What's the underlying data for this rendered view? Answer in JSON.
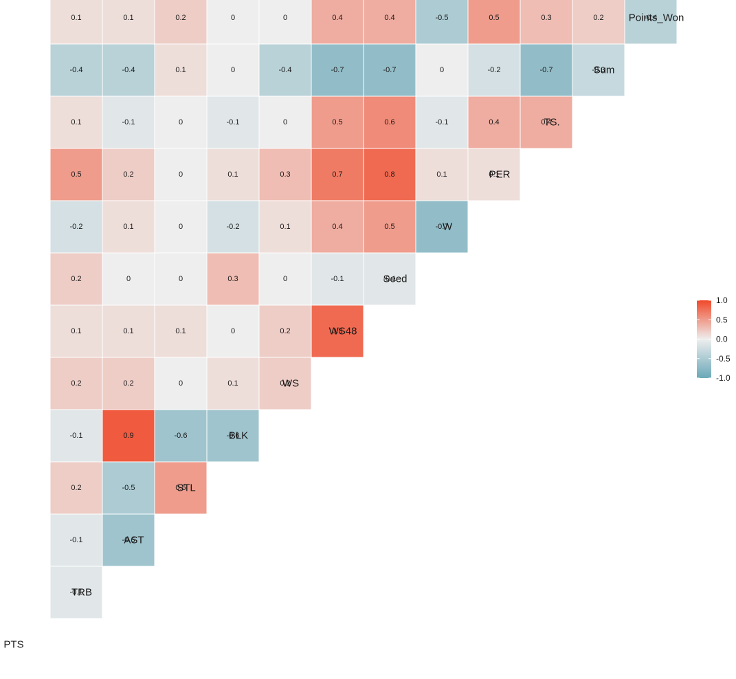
{
  "colors": {
    "low": "#6aa8b8",
    "mid": "#eeeeee",
    "high": "#f0492a"
  },
  "chart_data": {
    "type": "heatmap",
    "variables": [
      "PTS",
      "TRB",
      "AST",
      "STL",
      "BLK",
      "WS",
      "WS48",
      "Seed",
      "W",
      "PER",
      "TS.",
      "Sum",
      "Points_Won"
    ],
    "matrix_lower": [
      [],
      [
        -0.1
      ],
      [
        -0.1,
        -0.6
      ],
      [
        0.2,
        -0.5,
        0.5
      ],
      [
        -0.1,
        0.9,
        -0.6,
        -0.6
      ],
      [
        0.2,
        0.2,
        0,
        0.1,
        0.2
      ],
      [
        0.1,
        0.1,
        0.1,
        0,
        0.2,
        0.8
      ],
      [
        0.2,
        0,
        0,
        0.3,
        0,
        -0.1,
        -0.1
      ],
      [
        -0.2,
        0.1,
        0,
        -0.2,
        0.1,
        0.4,
        0.5,
        -0.7
      ],
      [
        0.5,
        0.2,
        0,
        0.1,
        0.3,
        0.7,
        0.8,
        0.1,
        0.1
      ],
      [
        0.1,
        -0.1,
        0,
        -0.1,
        0,
        0.5,
        0.6,
        -0.1,
        0.4,
        0.4
      ],
      [
        -0.4,
        -0.4,
        0.1,
        0,
        -0.4,
        -0.7,
        -0.7,
        0,
        -0.2,
        -0.7,
        -0.3
      ],
      [
        0.1,
        0.1,
        0.2,
        0,
        0,
        0.4,
        0.4,
        -0.5,
        0.5,
        0.3,
        0.2,
        -0.4
      ]
    ],
    "legend": {
      "ticks": [
        1.0,
        0.5,
        0.0,
        -0.5,
        -1.0
      ],
      "tick_labels": [
        "1.0",
        "0.5",
        "0.0",
        "-0.5",
        "-1.0"
      ],
      "range": [
        -1,
        1
      ],
      "position": "right"
    }
  }
}
